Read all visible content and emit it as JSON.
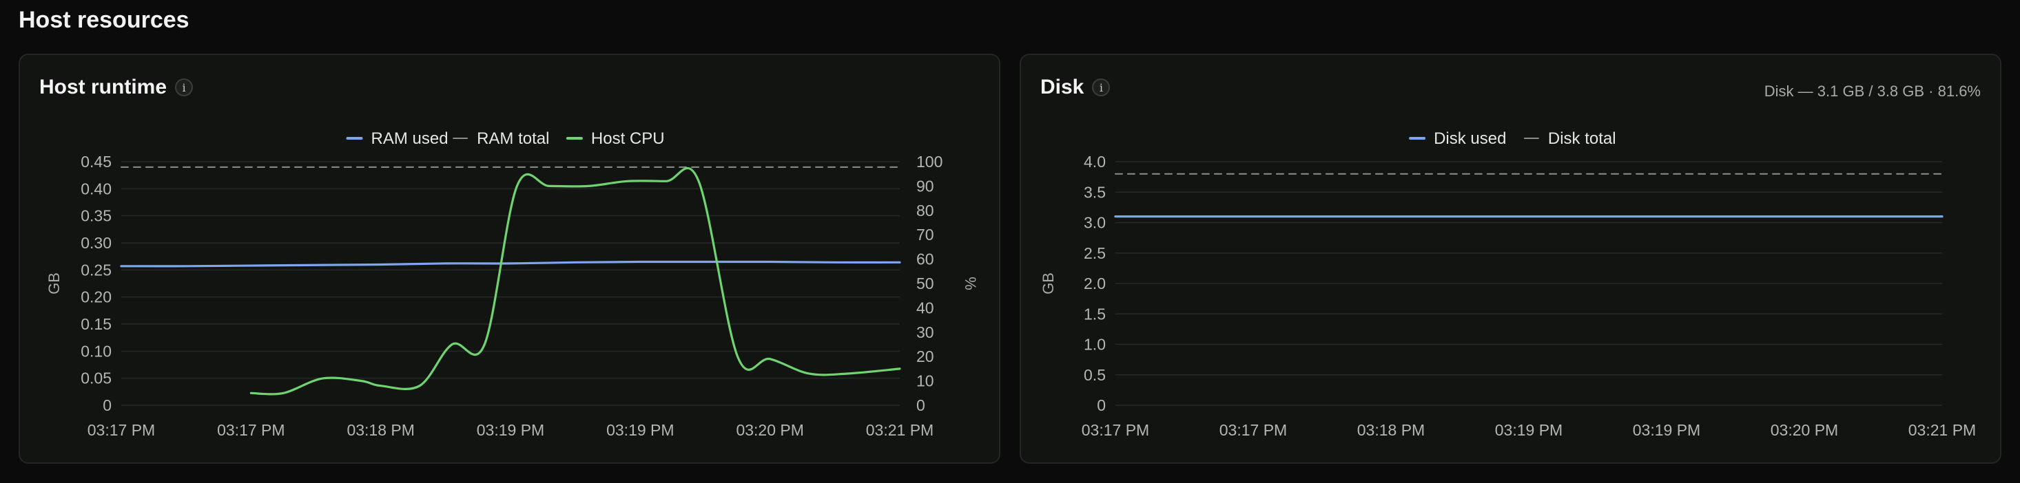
{
  "page": {
    "section_title": "Host resources"
  },
  "runtime_card": {
    "title": "Host runtime",
    "info_icon": "info-icon",
    "chart_data": {
      "type": "line",
      "legend_position": "top-center",
      "grid": true,
      "x": [
        "03:17 PM",
        "03:17 PM",
        "03:18 PM",
        "03:19 PM",
        "03:19 PM",
        "03:20 PM",
        "03:21 PM"
      ],
      "xlim": [
        0,
        6
      ],
      "y_left": {
        "label": "GB",
        "ylim": [
          0,
          0.45
        ],
        "ticks": [
          "0",
          "0.05",
          "0.10",
          "0.15",
          "0.20",
          "0.25",
          "0.30",
          "0.35",
          "0.40",
          "0.45"
        ]
      },
      "y_right": {
        "label": "%",
        "ylim": [
          0,
          100
        ],
        "ticks": [
          "0",
          "10",
          "20",
          "30",
          "40",
          "50",
          "60",
          "70",
          "80",
          "90",
          "100"
        ]
      },
      "series": [
        {
          "name": "RAM used",
          "axis": "left",
          "color": "#7ea6f0",
          "style": "solid",
          "points": [
            [
              0,
              0.257
            ],
            [
              0.5,
              0.257
            ],
            [
              1,
              0.258
            ],
            [
              1.5,
              0.259
            ],
            [
              2,
              0.26
            ],
            [
              2.5,
              0.262
            ],
            [
              3,
              0.262
            ],
            [
              3.5,
              0.264
            ],
            [
              4,
              0.265
            ],
            [
              4.5,
              0.265
            ],
            [
              5,
              0.265
            ],
            [
              5.5,
              0.264
            ],
            [
              6,
              0.264
            ]
          ]
        },
        {
          "name": "RAM total",
          "axis": "left",
          "color": "#8c8e8c",
          "style": "dashed",
          "points": [
            [
              0,
              0.44
            ],
            [
              6,
              0.44
            ]
          ]
        },
        {
          "name": "Host CPU",
          "axis": "right",
          "color": "#6fd470",
          "style": "solid",
          "points": [
            [
              1,
              5.0
            ],
            [
              1.25,
              5.0
            ],
            [
              1.55,
              11.0
            ],
            [
              1.85,
              10.0
            ],
            [
              2.0,
              8.0
            ],
            [
              2.3,
              8.0
            ],
            [
              2.55,
              25.0
            ],
            [
              2.8,
              25.0
            ],
            [
              3.05,
              90.0
            ],
            [
              3.3,
              90.0
            ],
            [
              3.6,
              90.0
            ],
            [
              3.9,
              92.0
            ],
            [
              4.2,
              92.0
            ],
            [
              4.45,
              92.0
            ],
            [
              4.75,
              20.0
            ],
            [
              5.0,
              19.0
            ],
            [
              5.3,
              13.0
            ],
            [
              5.6,
              13.0
            ],
            [
              6.0,
              15.0
            ]
          ]
        }
      ]
    }
  },
  "disk_card": {
    "title": "Disk",
    "info_icon": "info-icon",
    "summary": "Disk — 3.1 GB / 3.8 GB · 81.6%",
    "chart_data": {
      "type": "line",
      "legend_position": "top-center",
      "grid": true,
      "x": [
        "03:17 PM",
        "03:17 PM",
        "03:18 PM",
        "03:19 PM",
        "03:19 PM",
        "03:20 PM",
        "03:21 PM"
      ],
      "xlim": [
        0,
        6
      ],
      "y_left": {
        "label": "GB",
        "ylim": [
          0,
          4.0
        ],
        "ticks": [
          "0",
          "0.5",
          "1.0",
          "1.5",
          "2.0",
          "2.5",
          "3.0",
          "3.5",
          "4.0"
        ]
      },
      "series": [
        {
          "name": "Disk used",
          "axis": "left",
          "color": "#7ea6f0",
          "style": "solid",
          "points": [
            [
              0,
              3.1
            ],
            [
              6,
              3.1
            ]
          ]
        },
        {
          "name": "Disk total",
          "axis": "left",
          "color": "#8c8e8c",
          "style": "dashed",
          "points": [
            [
              0,
              3.8
            ],
            [
              6,
              3.8
            ]
          ]
        }
      ]
    }
  }
}
